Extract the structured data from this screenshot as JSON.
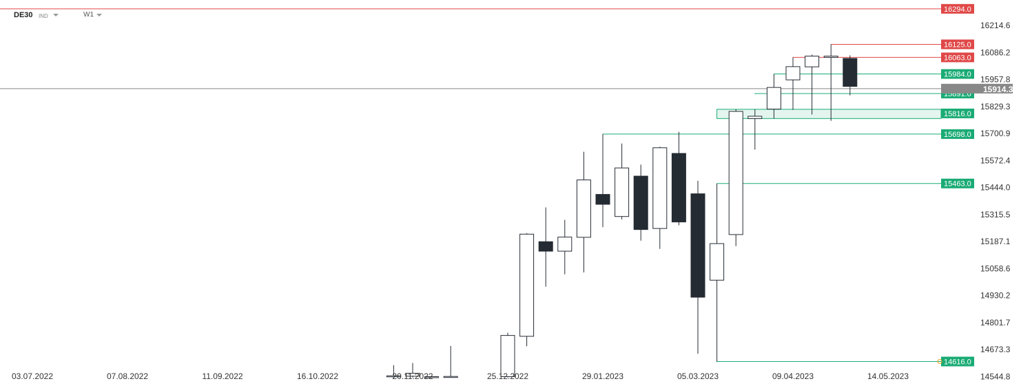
{
  "toolbar": {
    "symbol": "DE30",
    "instrument_class": "IND",
    "timeframe": "W1"
  },
  "chart_data": {
    "type": "candlestick",
    "title": "",
    "xlabel": "",
    "ylabel": "",
    "ylim": [
      14490,
      16336
    ],
    "y_ticks": [
      16214.6,
      16086.2,
      15957.8,
      15829.3,
      15700.9,
      15572.4,
      15444.0,
      15315.5,
      15187.1,
      15058.6,
      14930.2,
      14801.7,
      14673.3,
      14544.8
    ],
    "x_ticks": [
      "03.07.2022",
      "07.08.2022",
      "11.09.2022",
      "16.10.2022",
      "20.11.2022",
      "25.12.2022",
      "29.01.2023",
      "05.03.2023",
      "09.04.2023",
      "14.05.2023"
    ],
    "x_tick_weeks": [
      0,
      5,
      10,
      15,
      20,
      25,
      30,
      35,
      40,
      45
    ],
    "current_price": 15914.3,
    "candles": [
      {
        "w": 19,
        "o": 14544,
        "h": 14599,
        "l": 14540,
        "c": 14548
      },
      {
        "w": 20,
        "o": 14546,
        "h": 14609,
        "l": 14540,
        "c": 14560
      },
      {
        "w": 21,
        "o": 14542,
        "h": 14546,
        "l": 14540,
        "c": 14544
      },
      {
        "w": 22,
        "o": 14544,
        "h": 14690,
        "l": 14540,
        "c": 14545
      },
      {
        "w": 25,
        "o": 14544,
        "h": 14753,
        "l": 14540,
        "c": 14740
      },
      {
        "w": 26,
        "o": 14736,
        "h": 15227,
        "l": 14689,
        "c": 15222
      },
      {
        "w": 27,
        "o": 15186,
        "h": 15349,
        "l": 14972,
        "c": 15141
      },
      {
        "w": 28,
        "o": 15141,
        "h": 15290,
        "l": 15031,
        "c": 15208
      },
      {
        "w": 29,
        "o": 15207,
        "h": 15614,
        "l": 15040,
        "c": 15480
      },
      {
        "w": 30,
        "o": 15411,
        "h": 15698,
        "l": 15255,
        "c": 15364
      },
      {
        "w": 31,
        "o": 15306,
        "h": 15653,
        "l": 15292,
        "c": 15537
      },
      {
        "w": 32,
        "o": 15498,
        "h": 15553,
        "l": 15191,
        "c": 15244
      },
      {
        "w": 33,
        "o": 15249,
        "h": 15638,
        "l": 15152,
        "c": 15633
      },
      {
        "w": 34,
        "o": 15606,
        "h": 15709,
        "l": 15264,
        "c": 15280
      },
      {
        "w": 35,
        "o": 15414,
        "h": 15476,
        "l": 14653,
        "c": 14922
      },
      {
        "w": 36,
        "o": 15003,
        "h": 15463,
        "l": 14616,
        "c": 15177
      },
      {
        "w": 37,
        "o": 15220,
        "h": 15816,
        "l": 15165,
        "c": 15806
      },
      {
        "w": 38,
        "o": 15772,
        "h": 15816,
        "l": 15624,
        "c": 15783
      },
      {
        "w": 39,
        "o": 15817,
        "h": 15984,
        "l": 15772,
        "c": 15920
      },
      {
        "w": 40,
        "o": 15956,
        "h": 16063,
        "l": 15813,
        "c": 16019
      },
      {
        "w": 41,
        "o": 16018,
        "h": 16076,
        "l": 15791,
        "c": 16069
      },
      {
        "w": 42,
        "o": 16063,
        "h": 16125,
        "l": 15761,
        "c": 16069
      },
      {
        "w": 43,
        "o": 16058,
        "h": 16073,
        "l": 15882,
        "c": 15925
      }
    ],
    "levels": [
      {
        "label": "16294.0",
        "value": 16294.0,
        "color": "#e04848",
        "start_week": -2
      },
      {
        "label": "16125.0",
        "value": 16125.0,
        "color": "#e04848",
        "start_week": 42
      },
      {
        "label": "16063.0",
        "value": 16063.0,
        "color": "#e04848",
        "start_week": 40
      },
      {
        "label": "15984.0",
        "value": 15984.0,
        "color": "#1aab75",
        "start_week": 39
      },
      {
        "label": "15891.0",
        "value": 15891.0,
        "color": "#1aab75",
        "start_week": 38
      },
      {
        "label": "15698.0",
        "value": 15698.0,
        "color": "#1aab75",
        "start_week": 30
      },
      {
        "label": "15463.0",
        "value": 15463.0,
        "color": "#1aab75",
        "start_week": 36
      },
      {
        "label": "14616.0",
        "value": 14616.0,
        "color": "#1aab75",
        "start_week": 36
      }
    ],
    "zones": [
      {
        "label": "15816.0",
        "low": 15772,
        "high": 15816,
        "color": "#1aab75",
        "start_week": 36
      }
    ],
    "colors": {
      "bear_body": "#252b33",
      "bull_body": "#ffffff",
      "wick": "#252b33",
      "price_line": "#888888",
      "axis_text": "#333333"
    }
  }
}
